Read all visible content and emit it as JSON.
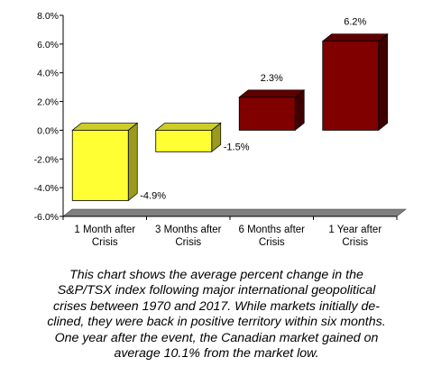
{
  "chart_data": {
    "type": "bar",
    "style": "3d",
    "categories": [
      [
        "1 Month after",
        "Crisis"
      ],
      [
        "3 Months after",
        "Crisis"
      ],
      [
        "6 Months after",
        "Crisis"
      ],
      [
        "1 Year after",
        "Crisis"
      ]
    ],
    "values": [
      -4.9,
      -1.5,
      2.3,
      6.2
    ],
    "data_labels": [
      "-4.9%",
      "-1.5%",
      "2.3%",
      "6.2%"
    ],
    "ylim": [
      -6.0,
      8.0
    ],
    "yticks": [
      "8.0%",
      "6.0%",
      "4.0%",
      "2.0%",
      "0.0%",
      "-2.0%",
      "-4.0%",
      "-6.0%"
    ],
    "ytick_values": [
      8,
      6,
      4,
      2,
      0,
      -2,
      -4,
      -6
    ],
    "grid": false,
    "legend": "none",
    "colors": {
      "negative_face": "#ffff33",
      "negative_side": "#9a9a1c",
      "negative_top": "#cccc2a",
      "positive_face": "#800000",
      "positive_side": "#3f0000",
      "positive_top": "#5e0000",
      "floor": "#808080"
    }
  },
  "caption": {
    "lines": [
      "This chart shows the average percent change in the",
      "S&P/TSX index following major international geopolitical",
      "crises between 1970 and 2017. While markets initially de-",
      "clined, they were  back in positive territory within six months.",
      "One year after the event, the Canadian market gained on",
      "average 10.1% from the market low."
    ]
  }
}
